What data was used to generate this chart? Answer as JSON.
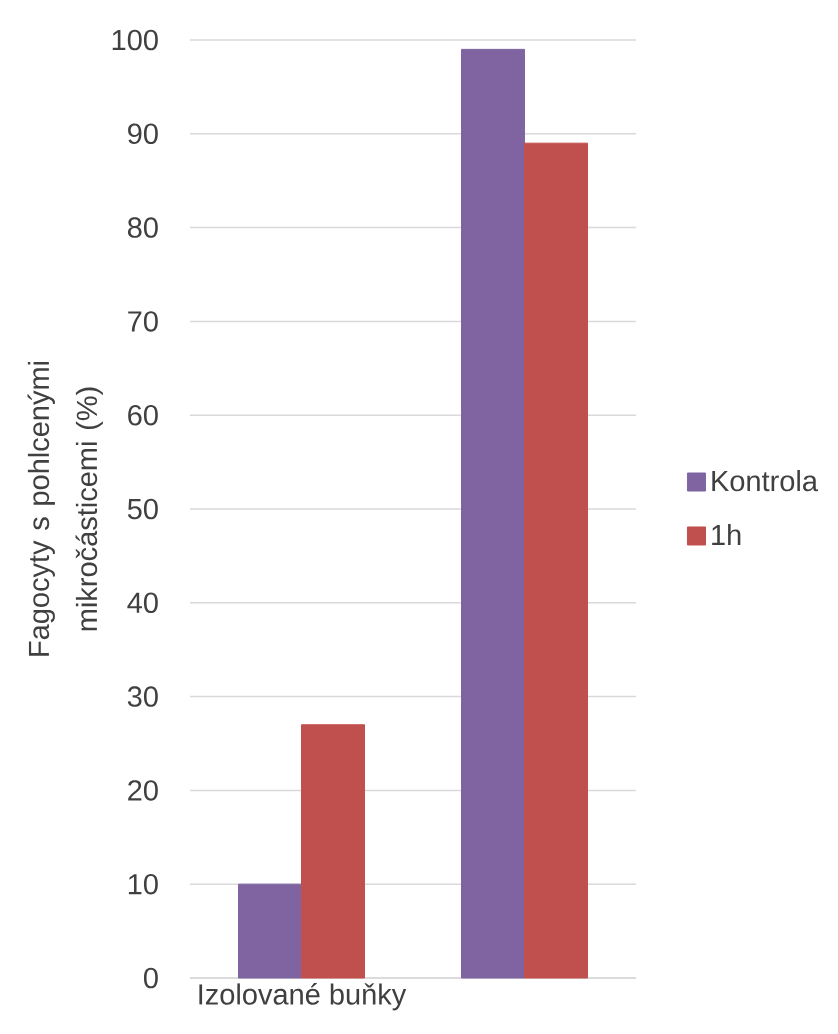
{
  "chart_data": {
    "type": "bar",
    "ylabel": "Fagocyty s pohlcenými mikročásticemi (%)",
    "categories": [
      "Izolované buňky",
      null
    ],
    "series": [
      {
        "name": "Kontrola",
        "color": "#8064a2",
        "values": [
          10,
          99
        ]
      },
      {
        "name": "1h",
        "color": "#c0504d",
        "values": [
          27,
          89
        ]
      }
    ],
    "ylim": [
      0,
      100
    ],
    "yticks": [
      0,
      10,
      20,
      30,
      40,
      50,
      60,
      70,
      80,
      90,
      100
    ],
    "grid": "y",
    "legend": "right"
  }
}
